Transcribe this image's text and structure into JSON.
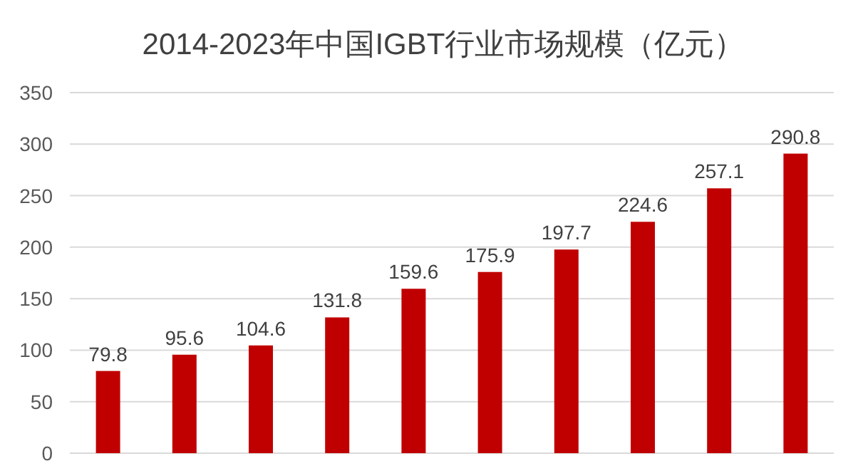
{
  "chart_data": {
    "type": "bar",
    "title": "2014-2023年中国IGBT行业市场规模（亿元）",
    "categories": [
      null,
      null,
      null,
      null,
      null,
      null,
      null,
      null,
      null,
      null
    ],
    "values": [
      79.8,
      95.6,
      104.6,
      131.8,
      159.6,
      175.9,
      197.7,
      224.6,
      257.1,
      290.8
    ],
    "color": "#c00000",
    "ylim": [
      0,
      350
    ],
    "yticks": [
      0,
      50,
      100,
      150,
      200,
      250,
      300,
      350
    ],
    "grid": "y",
    "data_labels": true
  }
}
